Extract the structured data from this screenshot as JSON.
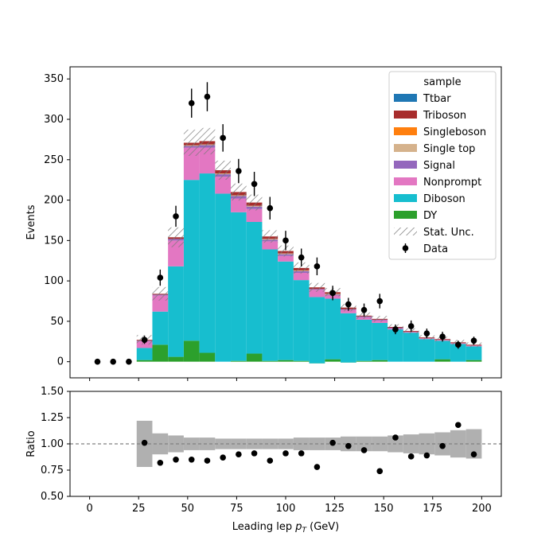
{
  "chart_data": [
    {
      "type": "bar",
      "subtype": "stacked-histogram-with-data",
      "ylabel": "Events",
      "xlim": [
        -10,
        210
      ],
      "ylim": [
        -20,
        365
      ],
      "x_ticks": [
        0,
        25,
        50,
        75,
        100,
        125,
        150,
        175,
        200
      ],
      "y_ticks": [
        0,
        50,
        100,
        150,
        200,
        250,
        300,
        350
      ],
      "bin_edges": [
        0,
        8,
        16,
        24,
        32,
        40,
        48,
        56,
        64,
        72,
        80,
        88,
        96,
        104,
        112,
        120,
        128,
        136,
        144,
        152,
        160,
        168,
        176,
        184,
        192,
        200
      ],
      "bin_centers": [
        4,
        12,
        20,
        28,
        36,
        44,
        52,
        60,
        68,
        76,
        84,
        92,
        100,
        108,
        116,
        124,
        132,
        140,
        148,
        156,
        164,
        172,
        180,
        188,
        196
      ],
      "legend": {
        "title": "sample",
        "position": "top-right",
        "entries": [
          "Ttbar",
          "Triboson",
          "Singleboson",
          "Single top",
          "Signal",
          "Nonprompt",
          "Diboson",
          "DY",
          "Stat. Unc.",
          "Data"
        ]
      },
      "series": [
        {
          "name": "DY",
          "color": "#2ca02c",
          "values": [
            0,
            0,
            0,
            2,
            21,
            6,
            26,
            11,
            0,
            1,
            10,
            1,
            2,
            1,
            -2,
            3,
            -1,
            1,
            2,
            0,
            0,
            0,
            3,
            0,
            2
          ]
        },
        {
          "name": "Diboson",
          "color": "#17becf",
          "values": [
            0,
            0,
            0,
            15,
            41,
            112,
            199,
            222,
            208,
            184,
            163,
            138,
            122,
            100,
            82,
            75,
            61,
            51,
            46,
            40,
            36,
            28,
            23,
            22,
            17
          ]
        },
        {
          "name": "Nonprompt",
          "color": "#e377c2",
          "values": [
            0,
            0,
            0,
            8,
            20,
            32,
            40,
            32,
            21,
            17,
            16,
            10,
            7,
            9,
            9,
            4,
            4,
            3,
            3,
            1,
            1,
            1,
            1,
            1,
            1
          ]
        },
        {
          "name": "Signal",
          "color": "#9467bd",
          "values": [
            0,
            0,
            0,
            1,
            1,
            2,
            2,
            3,
            3,
            3,
            3,
            2,
            2,
            2,
            1,
            1,
            1,
            1,
            1,
            1,
            0,
            0,
            0,
            0,
            0
          ]
        },
        {
          "name": "Single top",
          "color": "#d5b28c",
          "values": [
            0,
            0,
            0,
            0,
            0,
            0,
            1,
            1,
            1,
            1,
            1,
            1,
            1,
            1,
            0,
            1,
            0,
            0,
            0,
            0,
            0,
            0,
            0,
            0,
            0
          ]
        },
        {
          "name": "Singleboson",
          "color": "#ff7f0e",
          "values": [
            0,
            0,
            0,
            0,
            0,
            0,
            0,
            0,
            0,
            0,
            0,
            0,
            0,
            0,
            0,
            0,
            0,
            0,
            0,
            0,
            0,
            0,
            0,
            0,
            0
          ]
        },
        {
          "name": "Triboson",
          "color": "#a82c2c",
          "values": [
            0,
            0,
            0,
            1,
            1,
            2,
            3,
            4,
            4,
            4,
            4,
            3,
            3,
            3,
            2,
            2,
            2,
            1,
            1,
            1,
            1,
            1,
            1,
            1,
            1
          ]
        },
        {
          "name": "Ttbar",
          "color": "#1f77b4",
          "values": [
            0,
            0,
            0,
            0,
            0,
            0,
            0,
            0,
            0,
            0,
            0,
            0,
            0,
            0,
            0,
            0,
            0,
            0,
            0,
            0,
            0,
            0,
            0,
            0,
            0
          ]
        }
      ],
      "stat_unc_fraction": [
        0,
        0,
        0,
        0.22,
        0.1,
        0.08,
        0.06,
        0.06,
        0.05,
        0.05,
        0.05,
        0.05,
        0.05,
        0.06,
        0.06,
        0.06,
        0.07,
        0.07,
        0.07,
        0.08,
        0.09,
        0.1,
        0.11,
        0.13,
        0.14
      ],
      "data": {
        "name": "Data",
        "color": "#000000",
        "values": [
          0,
          0,
          0,
          27,
          104,
          180,
          320,
          328,
          277,
          236,
          220,
          190,
          150,
          129,
          118,
          85,
          71,
          64,
          75,
          40,
          44,
          35,
          31,
          21,
          26
        ],
        "errors": [
          0,
          0,
          0,
          5,
          10,
          13,
          18,
          18,
          17,
          15,
          15,
          14,
          12,
          11,
          11,
          9,
          8,
          8,
          9,
          6,
          7,
          6,
          6,
          5,
          5
        ]
      }
    },
    {
      "type": "scatter",
      "subtype": "ratio",
      "xlabel_prefix": "Leading lep ",
      "xlabel_var": "p",
      "xlabel_sub": "T",
      "xlabel_suffix": " (GeV)",
      "ylabel": "Ratio",
      "xlim": [
        -10,
        210
      ],
      "ylim": [
        0.5,
        1.5
      ],
      "x_ticks": [
        0,
        25,
        50,
        75,
        100,
        125,
        150,
        175,
        200
      ],
      "y_ticks": [
        "0.50",
        "0.75",
        "1.00",
        "1.25",
        "1.50"
      ],
      "reference_line": 1.0,
      "band_color": "#b0b0b0",
      "x": [
        28,
        36,
        44,
        52,
        60,
        68,
        76,
        84,
        92,
        100,
        108,
        116,
        124,
        132,
        140,
        148,
        156,
        164,
        172,
        180,
        188,
        196
      ],
      "values": [
        1.01,
        0.82,
        0.85,
        0.85,
        0.84,
        0.87,
        0.9,
        0.91,
        0.84,
        0.91,
        0.91,
        0.78,
        1.01,
        0.98,
        0.94,
        0.74,
        1.06,
        0.88,
        0.89,
        0.98,
        1.18,
        0.9
      ]
    }
  ]
}
